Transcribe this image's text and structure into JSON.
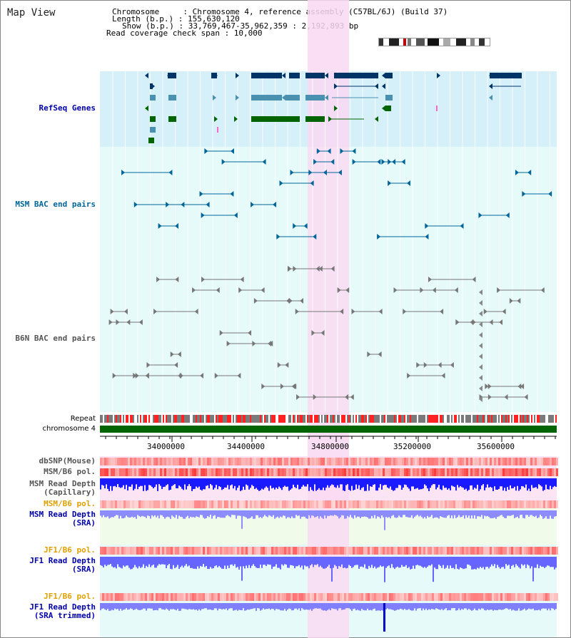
{
  "view_title": "Map View",
  "header": {
    "chromosome_label": "Chromosome     : Chromosome 4, reference assembly (C57BL/6J) (Build 37)",
    "length_label": "Length (b.p.) : 155,630,120",
    "show_label": "Show (b.p.) : 33,769,467-35,962,359 : 2,192,893 bp",
    "coverage_label": "Read coverage check span : 10,000"
  },
  "tracks": {
    "refseq": "RefSeq Genes",
    "msm_bac": "MSM BAC end pairs",
    "b6n_bac": "B6N BAC end pairs",
    "repeat": "Repeat",
    "chromosome": "chromosome 4",
    "dbsnp": "dbSNP(Mouse)",
    "msm_pol": "MSM/B6 pol.",
    "msm_depth_cap_1": "MSM Read Depth",
    "msm_depth_cap_2": "(Capillary)",
    "msm_pol_sra": "MSM/B6 pol.",
    "msm_depth_sra_1": "MSM Read Depth",
    "msm_depth_sra_2": "(SRA)",
    "jf1_pol": "JF1/B6 pol.",
    "jf1_depth_1": "JF1 Read Depth",
    "jf1_depth_2": "(SRA)",
    "jf1_pol_trim": "JF1/B6 pol.",
    "jf1_depth_trim_1": "JF1 Read Depth",
    "jf1_depth_trim_2": "(SRA trimmed)"
  },
  "axis": {
    "ticks": [
      "34000000",
      "34400000",
      "34800000",
      "35200000",
      "35600000"
    ]
  },
  "colors": {
    "refseq_band": "#d6f0fa",
    "bac_band": "#e6fafa",
    "highlight": "#f9d9f2",
    "chromosome": "#006400",
    "gene_navy": "#003366",
    "gene_teal": "#4a90b0",
    "gene_green": "#006400",
    "depth_blue": "#0000ff",
    "pol_red": "#ff0000",
    "label_blue": "#0000aa",
    "label_orange": "#e0a000",
    "label_teal": "#006699",
    "label_gray": "#555555"
  }
}
